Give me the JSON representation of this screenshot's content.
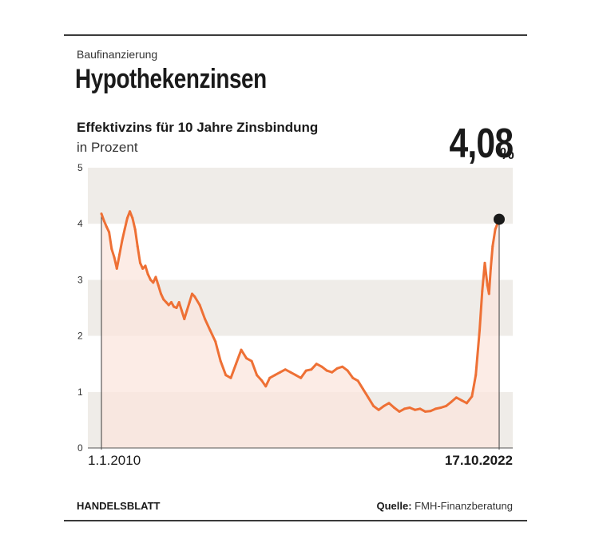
{
  "kicker": "Baufinanzierung",
  "title": "Hypothekenzinsen",
  "footer": {
    "brand": "HANDELSBLATT",
    "source_label": "Quelle:",
    "source_value": "FMH-Finanzberatung"
  },
  "colors": {
    "line": "#ee7035",
    "fill": "#fbe6dd",
    "band_dark": "#efece8",
    "band_light": "#ffffff",
    "marker": "#1a1a1a"
  },
  "chart_data": {
    "type": "area",
    "title": "Effektivzins für 10 Jahre Zinsbindung",
    "subtitle": "in Prozent",
    "highlight_value": "4,08",
    "highlight_unit": "%",
    "x_start_label": "1.1.2010",
    "x_end_label": "17.10.2022",
    "ylim": [
      0,
      5
    ],
    "yticks": [
      "0",
      "1",
      "2",
      "3",
      "4",
      "5"
    ],
    "grid": "alternating horizontal bands",
    "series": [
      {
        "x": [
          "2010-01-01",
          "2010-02-01",
          "2010-03-01",
          "2010-04-01",
          "2010-05-01",
          "2010-06-01",
          "2010-07-01",
          "2010-08-01",
          "2010-09-01",
          "2010-10-01",
          "2010-11-01",
          "2010-12-01",
          "2011-01-01",
          "2011-02-01",
          "2011-03-01",
          "2011-04-01",
          "2011-05-01",
          "2011-06-01",
          "2011-07-01",
          "2011-08-01",
          "2011-09-01",
          "2011-10-01",
          "2011-11-01",
          "2011-12-01",
          "2012-01-01",
          "2012-02-01",
          "2012-03-01",
          "2012-04-01",
          "2012-05-01",
          "2012-06-01",
          "2012-07-01",
          "2012-08-01",
          "2012-09-01",
          "2012-10-01",
          "2012-11-01",
          "2012-12-01",
          "2013-01-01",
          "2013-03-01",
          "2013-05-01",
          "2013-07-01",
          "2013-09-01",
          "2013-11-01",
          "2014-01-01",
          "2014-03-01",
          "2014-05-01",
          "2014-07-01",
          "2014-09-01",
          "2014-11-01",
          "2015-01-01",
          "2015-03-01",
          "2015-04-15",
          "2015-06-01",
          "2015-08-01",
          "2015-10-01",
          "2015-12-01",
          "2016-02-01",
          "2016-04-01",
          "2016-06-01",
          "2016-08-01",
          "2016-10-01",
          "2016-12-01",
          "2017-02-01",
          "2017-04-01",
          "2017-06-01",
          "2017-08-01",
          "2017-10-01",
          "2017-12-01",
          "2018-02-01",
          "2018-04-01",
          "2018-06-01",
          "2018-08-01",
          "2018-10-01",
          "2018-12-01",
          "2019-02-01",
          "2019-04-01",
          "2019-06-01",
          "2019-08-01",
          "2019-10-01",
          "2019-12-01",
          "2020-02-01",
          "2020-04-01",
          "2020-06-01",
          "2020-08-01",
          "2020-10-01",
          "2020-12-01",
          "2021-02-01",
          "2021-04-01",
          "2021-06-01",
          "2021-08-01",
          "2021-10-01",
          "2021-12-01",
          "2022-01-15",
          "2022-03-01",
          "2022-04-01",
          "2022-05-01",
          "2022-06-01",
          "2022-06-20",
          "2022-07-10",
          "2022-08-01",
          "2022-09-01",
          "2022-10-17"
        ],
        "y": [
          4.18,
          4.05,
          3.95,
          3.85,
          3.55,
          3.4,
          3.2,
          3.45,
          3.7,
          3.9,
          4.1,
          4.22,
          4.1,
          3.9,
          3.6,
          3.3,
          3.2,
          3.25,
          3.1,
          3.0,
          2.95,
          3.05,
          2.9,
          2.75,
          2.65,
          2.6,
          2.55,
          2.6,
          2.52,
          2.5,
          2.6,
          2.45,
          2.3,
          2.45,
          2.6,
          2.75,
          2.7,
          2.55,
          2.3,
          2.1,
          1.9,
          1.55,
          1.3,
          1.25,
          1.5,
          1.75,
          1.6,
          1.55,
          1.3,
          1.2,
          1.1,
          1.25,
          1.3,
          1.35,
          1.4,
          1.35,
          1.3,
          1.25,
          1.38,
          1.4,
          1.5,
          1.45,
          1.38,
          1.35,
          1.42,
          1.45,
          1.38,
          1.25,
          1.2,
          1.05,
          0.9,
          0.75,
          0.68,
          0.75,
          0.8,
          0.72,
          0.65,
          0.7,
          0.72,
          0.68,
          0.7,
          0.65,
          0.66,
          0.7,
          0.72,
          0.75,
          0.82,
          0.9,
          0.85,
          0.8,
          0.92,
          1.3,
          2.1,
          2.8,
          3.3,
          2.9,
          2.75,
          3.2,
          3.6,
          3.9,
          4.08
        ]
      }
    ]
  }
}
